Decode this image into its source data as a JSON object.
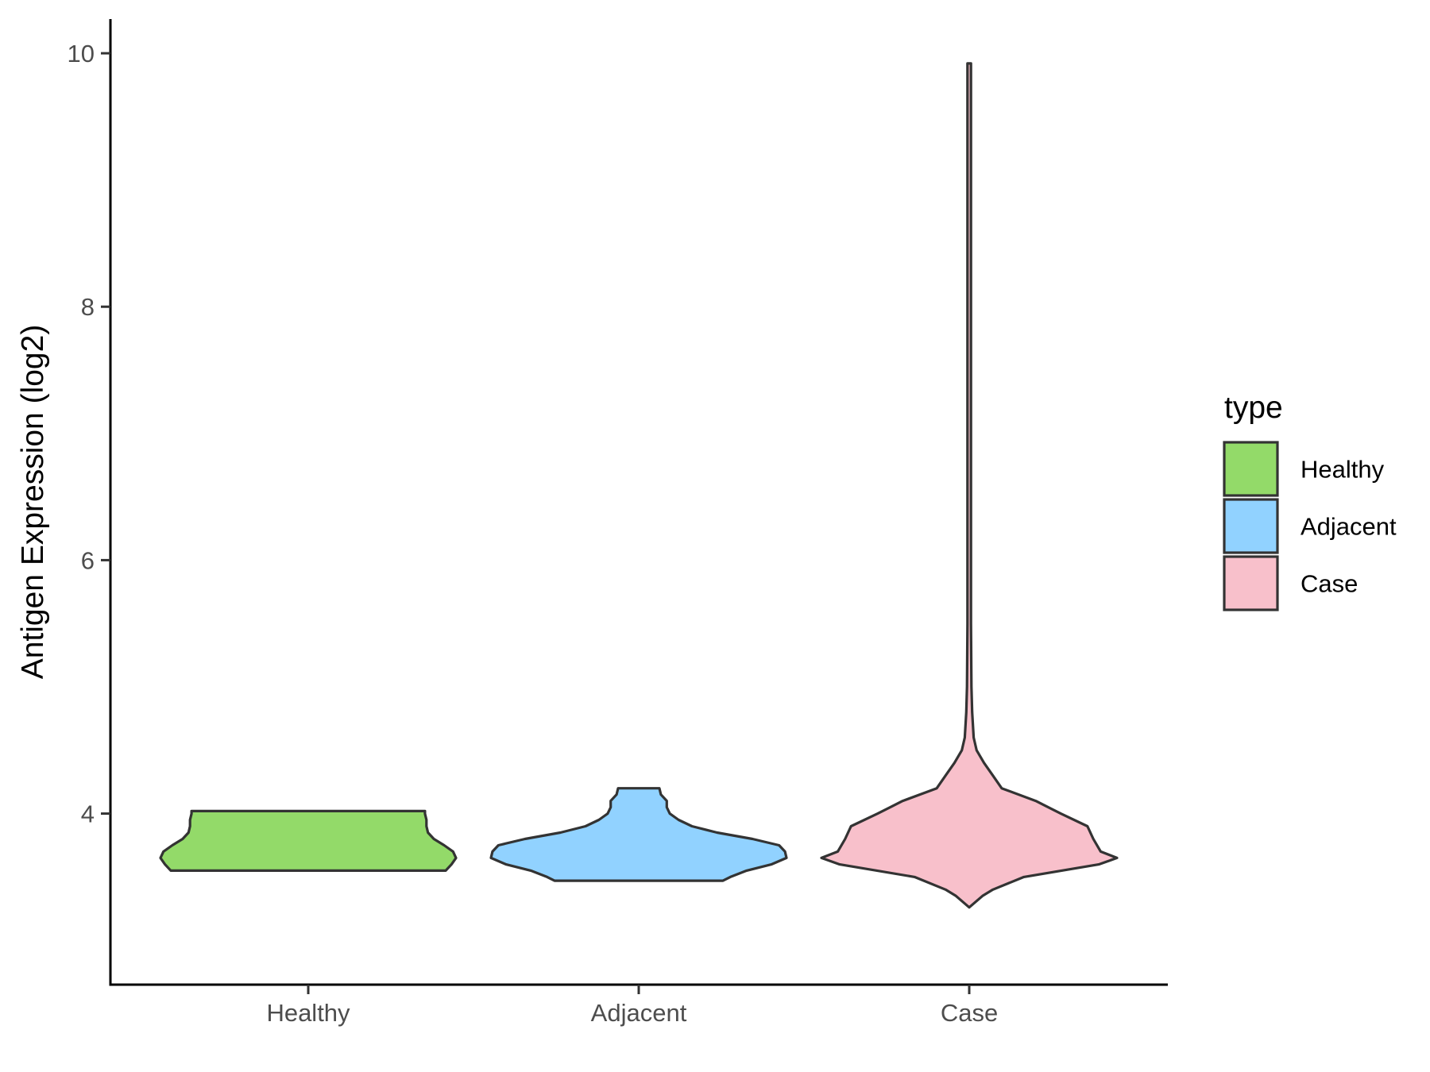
{
  "chart_data": {
    "type": "violin",
    "title": "",
    "xlabel": "",
    "ylabel": "Antigen Expression (log2)",
    "ylim": [
      2.65,
      10.27
    ],
    "yticks": [
      4,
      6,
      8,
      10
    ],
    "grid": false,
    "legend": {
      "title": "type",
      "position": "right",
      "entries": [
        "Healthy",
        "Adjacent",
        "Case"
      ]
    },
    "categories": [
      "Healthy",
      "Adjacent",
      "Case"
    ],
    "series": [
      {
        "name": "Healthy",
        "color": "#93DA69",
        "min": 3.55,
        "max": 4.02,
        "profile": [
          [
            3.55,
            0.93
          ],
          [
            3.6,
            0.97
          ],
          [
            3.65,
            1.0
          ],
          [
            3.7,
            0.98
          ],
          [
            3.75,
            0.92
          ],
          [
            3.8,
            0.85
          ],
          [
            3.85,
            0.81
          ],
          [
            3.9,
            0.8
          ],
          [
            3.95,
            0.8
          ],
          [
            4.0,
            0.79
          ],
          [
            4.02,
            0.79
          ]
        ]
      },
      {
        "name": "Adjacent",
        "color": "#91D2FF",
        "min": 3.47,
        "max": 4.2,
        "profile": [
          [
            3.47,
            0.57
          ],
          [
            3.5,
            0.62
          ],
          [
            3.55,
            0.73
          ],
          [
            3.6,
            0.9
          ],
          [
            3.65,
            1.0
          ],
          [
            3.7,
            0.99
          ],
          [
            3.75,
            0.95
          ],
          [
            3.8,
            0.77
          ],
          [
            3.85,
            0.53
          ],
          [
            3.9,
            0.36
          ],
          [
            3.95,
            0.27
          ],
          [
            4.0,
            0.21
          ],
          [
            4.05,
            0.19
          ],
          [
            4.1,
            0.19
          ],
          [
            4.15,
            0.15
          ],
          [
            4.2,
            0.14
          ]
        ]
      },
      {
        "name": "Case",
        "color": "#F8C0CB",
        "min": 3.26,
        "max": 9.92,
        "profile": [
          [
            3.26,
            0.0
          ],
          [
            3.3,
            0.04
          ],
          [
            3.35,
            0.09
          ],
          [
            3.4,
            0.16
          ],
          [
            3.5,
            0.37
          ],
          [
            3.6,
            0.88
          ],
          [
            3.65,
            1.0
          ],
          [
            3.7,
            0.89
          ],
          [
            3.8,
            0.84
          ],
          [
            3.9,
            0.8
          ],
          [
            4.0,
            0.62
          ],
          [
            4.1,
            0.45
          ],
          [
            4.2,
            0.22
          ],
          [
            4.3,
            0.16
          ],
          [
            4.4,
            0.1
          ],
          [
            4.5,
            0.05
          ],
          [
            4.6,
            0.03
          ],
          [
            4.8,
            0.02
          ],
          [
            5.0,
            0.015
          ],
          [
            5.5,
            0.012
          ],
          [
            6.0,
            0.012
          ],
          [
            7.0,
            0.012
          ],
          [
            8.0,
            0.012
          ],
          [
            9.0,
            0.012
          ],
          [
            9.5,
            0.012
          ],
          [
            9.92,
            0.012
          ]
        ]
      }
    ]
  }
}
